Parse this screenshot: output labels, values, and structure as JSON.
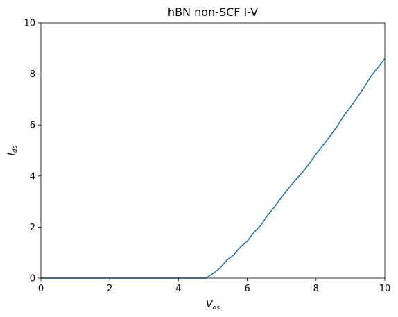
{
  "chart_data": {
    "type": "line",
    "title": "hBN non-SCF I-V",
    "xlabel": {
      "main": "V",
      "sub": "ds"
    },
    "ylabel": {
      "main": "I",
      "sub": "ds"
    },
    "xlim": [
      0,
      10
    ],
    "ylim": [
      0,
      10
    ],
    "xticks": [
      0,
      2,
      4,
      6,
      8,
      10
    ],
    "yticks": [
      0,
      2,
      4,
      6,
      8,
      10
    ],
    "grid": false,
    "series": [
      {
        "color": "#1f77b4",
        "x": [
          0,
          0.5,
          1,
          1.5,
          2,
          2.5,
          3,
          3.5,
          4,
          4.5,
          4.8,
          5.0,
          5.2,
          5.4,
          5.6,
          5.8,
          6.0,
          6.2,
          6.4,
          6.6,
          6.8,
          7.0,
          7.2,
          7.4,
          7.6,
          7.8,
          8.0,
          8.2,
          8.4,
          8.6,
          8.8,
          9.0,
          9.2,
          9.4,
          9.6,
          9.8,
          10.0
        ],
        "y": [
          0,
          0,
          0,
          0,
          0,
          0,
          0,
          0,
          0,
          0,
          0.0,
          0.18,
          0.38,
          0.7,
          0.9,
          1.22,
          1.45,
          1.8,
          2.08,
          2.48,
          2.8,
          3.18,
          3.52,
          3.84,
          4.14,
          4.48,
          4.86,
          5.2,
          5.55,
          5.92,
          6.35,
          6.7,
          7.08,
          7.48,
          7.92,
          8.25,
          8.6
        ]
      }
    ]
  }
}
